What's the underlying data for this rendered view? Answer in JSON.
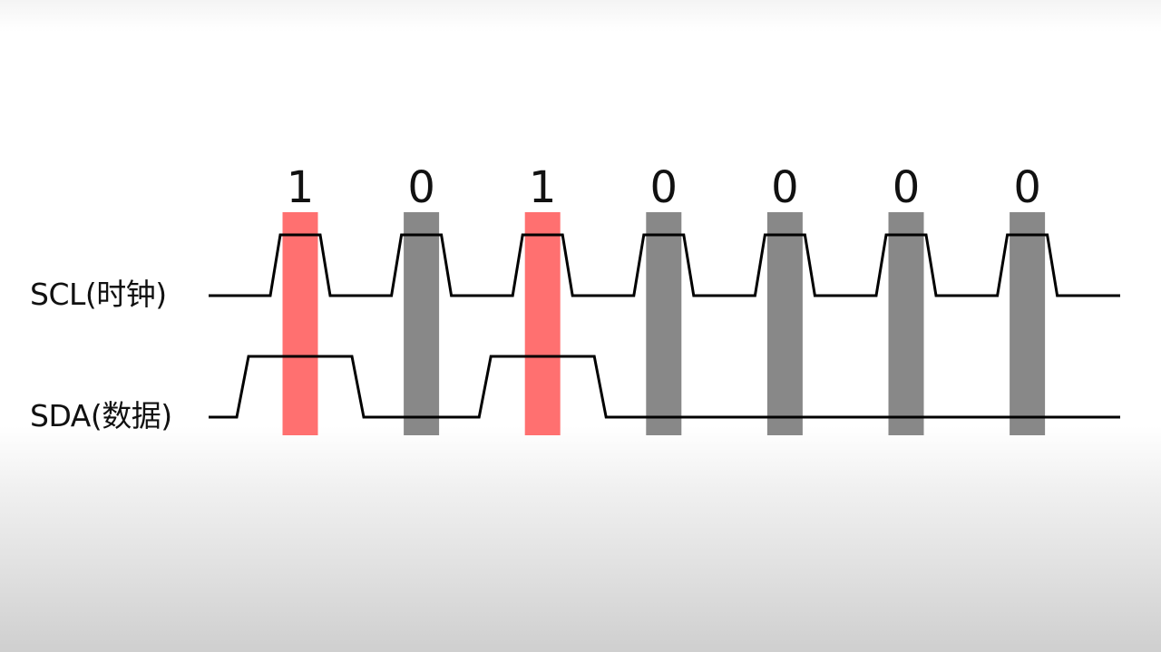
{
  "signals": {
    "scl_label": "SCL(时钟)",
    "sda_label": "SDA(数据)"
  },
  "bits": [
    "1",
    "0",
    "1",
    "0",
    "0",
    "0",
    "0"
  ],
  "colors": {
    "one_bar": "#ff7070",
    "zero_bar": "#888888",
    "waveform": "#000000"
  }
}
